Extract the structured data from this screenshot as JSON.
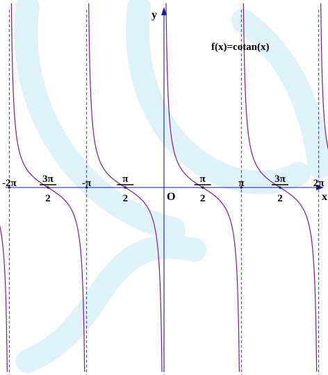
{
  "chart_data": {
    "type": "line",
    "title": "f(x)=cotan(x)",
    "xlabel": "x",
    "ylabel": "y",
    "origin_label": "O",
    "xlim": [
      -6.66,
      6.66
    ],
    "ylim": [
      -12,
      12
    ],
    "asymptotes": [
      -6.2832,
      -3.1416,
      0,
      3.1416,
      6.2832
    ],
    "tick_labels": [
      {
        "x": -6.2832,
        "text": "-2π",
        "type": "simple"
      },
      {
        "x": -4.7124,
        "num": "3π",
        "den": "2",
        "type": "frac"
      },
      {
        "x": -3.1416,
        "text": "-π",
        "type": "simple"
      },
      {
        "x": -1.5708,
        "num": "π",
        "den": "2",
        "type": "frac"
      },
      {
        "x": 1.5708,
        "num": "π",
        "den": "2",
        "type": "frac"
      },
      {
        "x": 3.1416,
        "text": "π",
        "type": "simple"
      },
      {
        "x": 4.7124,
        "num": "3π",
        "den": "2",
        "type": "frac"
      },
      {
        "x": 6.2832,
        "text": "2π",
        "type": "simple"
      }
    ],
    "series": [
      {
        "function": "cot(x)",
        "domain": [
          -6.2832,
          6.2832
        ]
      }
    ]
  }
}
